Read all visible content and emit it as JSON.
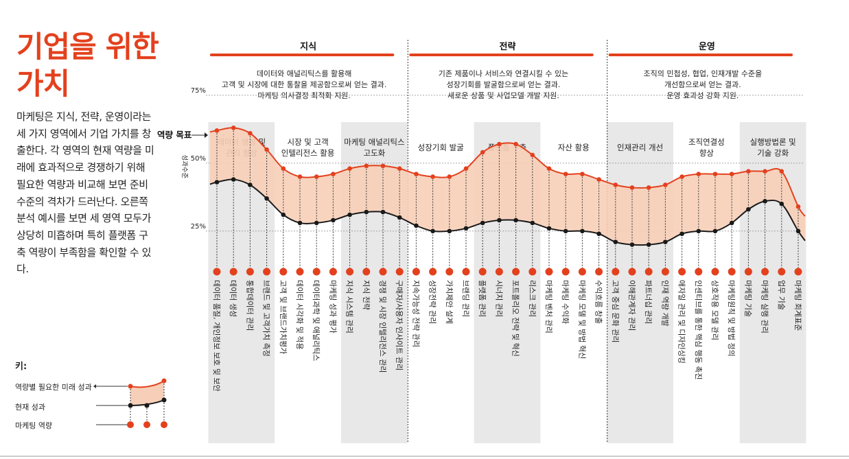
{
  "title": "기업을 위한 가치",
  "description": "마케팅은 지식, 전략, 운영이라는 세 가지 영역에서 기업 가치를 창출한다. 각 영역의 현재 역량을 미래에 효과적으로 경쟁하기 위해 필요한 역량과 비교해 보면 준비 수준의 격차가 드러난다. 오른쪽 분석 예시를 보면 세 영역 모두가 상당히 미흡하며 특히 플랫폼 구축 역량이 부족함을 확인할 수 있다.",
  "key": {
    "label": "키:",
    "future": "역량별 필요한 미래 성과",
    "current": "현재 성과",
    "capability": "마케팅 역량"
  },
  "colors": {
    "accent": "#e3411e",
    "band": "#f7cfb8",
    "current": "#1a1a1a",
    "column": "#e8e8e8"
  },
  "chart_data": {
    "type": "line",
    "ylabel": "성과수준",
    "row_label": "역량 목표",
    "yticks": [
      "25%",
      "50%",
      "75%"
    ],
    "ylim": [
      0,
      100
    ],
    "areas": [
      {
        "name": "지식",
        "description": [
          "데이터와 애널리틱스를 활용해",
          "고객 및 시장에 대한 통찰을 제공함으로써 얻는 결과.",
          "마케팅 의사결정 최적화 지원."
        ]
      },
      {
        "name": "전략",
        "description": [
          "기존 제품이나 서비스와 연결시킬 수 있는",
          "성장기회를 발굴함으로써 얻는 결과.",
          "새로운 상품 및 사업모델 개발 지원."
        ]
      },
      {
        "name": "운영",
        "description": [
          "조직의 민첩성, 협업, 인재개발 수준을",
          "개선함으로써 얻는 결과.",
          "운영 효과성 강화 지원."
        ]
      }
    ],
    "goals": [
      {
        "label": [
          "데이터 생성 및",
          "관리 향상"
        ],
        "count": 4
      },
      {
        "label": [
          "시장 및 고객",
          "인텔리전스 활용"
        ],
        "count": 4
      },
      {
        "label": [
          "마케팅 애널리틱스",
          "고도화"
        ],
        "count": 4
      },
      {
        "label": [
          "성장기회 발굴"
        ],
        "count": 4
      },
      {
        "label": [
          "플랫폼 구축"
        ],
        "count": 4
      },
      {
        "label": [
          "자산 활용"
        ],
        "count": 4
      },
      {
        "label": [
          "인재관리 개선"
        ],
        "count": 4
      },
      {
        "label": [
          "조직연결성",
          "향상"
        ],
        "count": 4
      },
      {
        "label": [
          "실행방법론 및",
          "기술 강화"
        ],
        "count": 4
      }
    ],
    "capabilities": [
      "데이터 품질, 개인정보 보호 및 보안",
      "데이터 생성",
      "통합데이터 관리",
      "브랜드 및 고객가치 측정",
      "고객 및 브랜드가치평가",
      "데이터 시각화 및 적용",
      "데이터과학 및 애널리틱스",
      "마케팅 성과 평가",
      "지식 시스템 관리",
      "지식 전략",
      "경쟁 및 시장 인텔리전스 관리",
      "구매자/사용자 인사이트 관리",
      "지속가능성 전략 관리",
      "성장전략 관리",
      "가치제안 설계",
      "브랜딩 관리",
      "플랫폼 관리",
      "시너지 관리",
      "포트폴리오 전략 및 혁신",
      "리스크 관리",
      "마케팅 벤처 관리",
      "마케팅 수익화",
      "마케팅 모델 및 방법 혁신",
      "수익흐름 창출",
      "고객 중심 문화 관리",
      "이해관계자 관리",
      "파트너십 관리",
      "인재 역량 개발",
      "애자일 관리 및 디자인싱킹",
      "인센티브를 통한 핵심 행동 촉진",
      "상호작용 모델 관리",
      "마케팅원칙 및 방법 정의",
      "마케팅 기술",
      "마케팅 실행 관리",
      "업무 기술",
      "마케팅 회계표준"
    ],
    "series": [
      {
        "name": "역량별 필요한 미래 성과",
        "values": [
          62,
          63,
          61,
          55,
          48,
          45,
          45,
          46,
          48,
          49,
          49,
          48,
          46,
          45,
          45,
          48,
          54,
          57,
          57,
          53,
          48,
          46,
          46,
          44,
          42,
          41,
          41,
          42,
          45,
          46,
          46,
          46,
          47,
          47,
          47,
          34
        ]
      },
      {
        "name": "현재 성과",
        "values": [
          43,
          44,
          42,
          37,
          31,
          28,
          28,
          29,
          31,
          32,
          32,
          30,
          27,
          25,
          25,
          26,
          28,
          29,
          29,
          28,
          26,
          25,
          25,
          24,
          21,
          20,
          20,
          21,
          24,
          25,
          25,
          28,
          33,
          36,
          35,
          25
        ]
      }
    ]
  }
}
